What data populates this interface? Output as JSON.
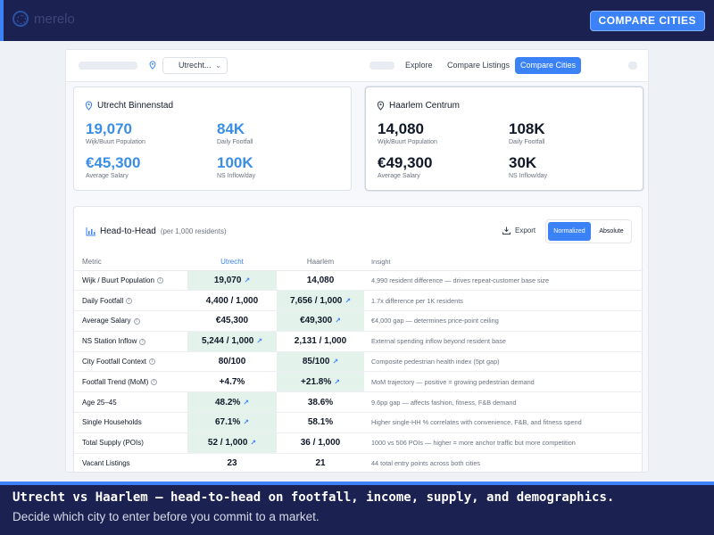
{
  "app": {
    "logo_text": "merelo"
  },
  "topbar": {
    "cta_label": "COMPARE CITIES"
  },
  "nav": {
    "city_select_value": "Utrecht...",
    "links": [
      "Explore",
      "Compare Listings",
      "Compare Cities"
    ]
  },
  "cards": [
    {
      "city": "Utrecht Binnenstad",
      "metrics": [
        {
          "value": "19,070",
          "label": "Wijk/Buurt Population"
        },
        {
          "value": "84K",
          "label": "Daily Footfall"
        },
        {
          "value": "€45,300",
          "label": "Average Salary"
        },
        {
          "value": "100K",
          "label": "NS Inflow/day"
        }
      ]
    },
    {
      "city": "Haarlem Centrum",
      "metrics": [
        {
          "value": "14,080",
          "label": "Wijk/Buurt Population"
        },
        {
          "value": "108K",
          "label": "Daily Footfall"
        },
        {
          "value": "€49,300",
          "label": "Average Salary"
        },
        {
          "value": "30K",
          "label": "NS Inflow/day"
        }
      ]
    }
  ],
  "h2h": {
    "title": "Head-to-Head",
    "subtitle": "(per 1,000 residents)",
    "export_label": "Export",
    "toggle": {
      "on": "Normalized",
      "off": "Absolute"
    },
    "columns": [
      "Metric",
      "Utrecht",
      "Haarlem",
      "Insight"
    ],
    "rows": [
      {
        "metric": "Wijk / Buurt Population",
        "info": true,
        "utrecht": "19,070",
        "haarlem": "14,080",
        "winner": "utrecht",
        "insight": "4,990 resident difference — drives repeat-customer base size"
      },
      {
        "metric": "Daily Footfall",
        "info": true,
        "utrecht": "4,400 / 1,000",
        "haarlem": "7,656 / 1,000",
        "winner": "haarlem",
        "insight": "1.7x difference per 1K residents"
      },
      {
        "metric": "Average Salary",
        "info": true,
        "utrecht": "€45,300",
        "haarlem": "€49,300",
        "winner": "haarlem",
        "insight": "€4,000 gap — determines price-point ceiling"
      },
      {
        "metric": "NS Station Inflow",
        "info": true,
        "utrecht": "5,244 / 1,000",
        "haarlem": "2,131 / 1,000",
        "winner": "utrecht",
        "insight": "External spending inflow beyond resident base"
      },
      {
        "metric": "City Footfall Context",
        "info": true,
        "utrecht": "80/100",
        "haarlem": "85/100",
        "winner": "haarlem",
        "insight": "Composite pedestrian health index (5pt gap)"
      },
      {
        "metric": "Footfall Trend (MoM)",
        "info": true,
        "utrecht": "+4.7%",
        "haarlem": "+21.8%",
        "winner": "haarlem",
        "insight": "MoM trajectory — positive = growing pedestrian demand"
      },
      {
        "metric": "Age 25–45",
        "info": false,
        "utrecht": "48.2%",
        "haarlem": "38.6%",
        "winner": "utrecht",
        "insight": "9.6pp gap — affects fashion, fitness, F&B demand"
      },
      {
        "metric": "Single Households",
        "info": false,
        "utrecht": "67.1%",
        "haarlem": "58.1%",
        "winner": "utrecht",
        "insight": "Higher single-HH % correlates with convenience, F&B, and fitness spend"
      },
      {
        "metric": "Total Supply (POIs)",
        "info": false,
        "utrecht": "52 / 1,000",
        "haarlem": "36 / 1,000",
        "winner": "utrecht",
        "insight": "1000 vs 506 POIs — higher = more anchor traffic but more competition"
      },
      {
        "metric": "Vacant Listings",
        "info": false,
        "utrecht": "23",
        "haarlem": "21",
        "winner": "",
        "insight": "44 total entry points across both cities"
      }
    ]
  },
  "caption": {
    "title": "Utrecht vs Haarlem — head-to-head on footfall, income, supply, and demographics.",
    "subtitle": "Decide which city to enter before you commit to a market."
  },
  "colors": {
    "accent": "#3b82f6",
    "navy": "#1b2150",
    "win_bg": "#e3f3ec"
  }
}
